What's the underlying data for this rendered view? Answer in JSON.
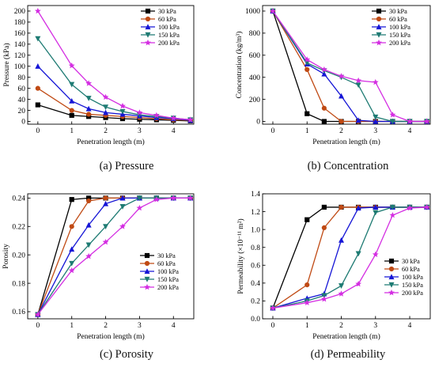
{
  "series_names": [
    "30 kPa",
    "60 kPa",
    "100 kPa",
    "150 kPa",
    "200 kPa"
  ],
  "colors": {
    "30 kPa": "#000000",
    "60 kPa": "#c04a14",
    "100 kPa": "#1616d6",
    "150 kPa": "#1e7b73",
    "200 kPa": "#d42ee2"
  },
  "markers": {
    "30 kPa": "square",
    "60 kPa": "circle",
    "100 kPa": "triangle-up",
    "150 kPa": "triangle-down",
    "200 kPa": "star"
  },
  "captions": {
    "a": "(a) Pressure",
    "b": "(b) Concentration",
    "c": "(c) Porosity",
    "d": "(d) Permeability"
  },
  "chart_data": [
    {
      "id": "a",
      "type": "line",
      "ylabel": "Pressure (kPa)",
      "xlabel": "Penetration length (m)",
      "xlim": [
        -0.3,
        4.6
      ],
      "ylim": [
        -5,
        210
      ],
      "xticks": [
        0,
        1,
        2,
        3,
        4
      ],
      "yticks": [
        0,
        20,
        40,
        60,
        80,
        100,
        120,
        140,
        160,
        180,
        200
      ],
      "legend": "top-right",
      "x": [
        0,
        1,
        1.5,
        2,
        2.5,
        3,
        3.5,
        4,
        4.5
      ],
      "series": [
        {
          "name": "30 kPa",
          "values": [
            30,
            11,
            9,
            7,
            5,
            4,
            3,
            2,
            1
          ]
        },
        {
          "name": "60 kPa",
          "values": [
            60,
            20,
            13,
            11,
            9,
            7,
            5,
            3,
            2
          ]
        },
        {
          "name": "100 kPa",
          "values": [
            100,
            37,
            23,
            16,
            13,
            10,
            7,
            5,
            2
          ]
        },
        {
          "name": "150 kPa",
          "values": [
            150,
            67,
            42,
            26,
            18,
            12,
            9,
            6,
            3
          ]
        },
        {
          "name": "200 kPa",
          "values": [
            200,
            101,
            69,
            44,
            28,
            16,
            11,
            6,
            3
          ]
        }
      ]
    },
    {
      "id": "b",
      "type": "line",
      "ylabel": "Concentration (kg/m³)",
      "xlabel": "Penetration length (m)",
      "xlim": [
        -0.3,
        4.6
      ],
      "ylim": [
        -25,
        1050
      ],
      "xticks": [
        0,
        1,
        2,
        3,
        4
      ],
      "yticks": [
        0,
        200,
        400,
        600,
        800,
        1000
      ],
      "legend": "top-right",
      "x": [
        0,
        1,
        1.5,
        2,
        2.5,
        3,
        3.5,
        4,
        4.5
      ],
      "series": [
        {
          "name": "30 kPa",
          "values": [
            1000,
            70,
            0,
            0,
            0,
            0,
            0,
            0,
            0
          ]
        },
        {
          "name": "60 kPa",
          "values": [
            1000,
            470,
            120,
            0,
            0,
            0,
            0,
            0,
            0
          ]
        },
        {
          "name": "100 kPa",
          "values": [
            1000,
            520,
            430,
            230,
            10,
            0,
            0,
            0,
            0
          ]
        },
        {
          "name": "150 kPa",
          "values": [
            1000,
            530,
            460,
            400,
            330,
            40,
            0,
            0,
            0
          ]
        },
        {
          "name": "200 kPa",
          "values": [
            1000,
            560,
            470,
            410,
            370,
            355,
            60,
            0,
            0
          ]
        }
      ]
    },
    {
      "id": "c",
      "type": "line",
      "ylabel": "Porosity",
      "xlabel": "Penetration length (m)",
      "xlim": [
        -0.3,
        4.6
      ],
      "ylim": [
        0.155,
        0.243
      ],
      "xticks": [
        0,
        1,
        2,
        3,
        4
      ],
      "yticks": [
        0.16,
        0.18,
        0.2,
        0.22,
        0.24
      ],
      "legend": "bottom-right",
      "x": [
        0,
        1,
        1.5,
        2,
        2.5,
        3,
        3.5,
        4,
        4.5
      ],
      "series": [
        {
          "name": "30 kPa",
          "values": [
            0.158,
            0.239,
            0.24,
            0.24,
            0.24,
            0.24,
            0.24,
            0.24,
            0.24
          ]
        },
        {
          "name": "60 kPa",
          "values": [
            0.158,
            0.22,
            0.238,
            0.24,
            0.24,
            0.24,
            0.24,
            0.24,
            0.24
          ]
        },
        {
          "name": "100 kPa",
          "values": [
            0.158,
            0.204,
            0.221,
            0.236,
            0.24,
            0.24,
            0.24,
            0.24,
            0.24
          ]
        },
        {
          "name": "150 kPa",
          "values": [
            0.158,
            0.194,
            0.207,
            0.22,
            0.234,
            0.24,
            0.24,
            0.24,
            0.24
          ]
        },
        {
          "name": "200 kPa",
          "values": [
            0.158,
            0.189,
            0.199,
            0.209,
            0.22,
            0.233,
            0.239,
            0.24,
            0.24
          ]
        }
      ]
    },
    {
      "id": "d",
      "type": "line",
      "ylabel": "Permeability (×10⁻¹¹ m²)",
      "xlabel": "Penetration length (m)",
      "xlim": [
        -0.3,
        4.6
      ],
      "ylim": [
        0.0,
        1.4
      ],
      "xticks": [
        0,
        1,
        2,
        3,
        4
      ],
      "yticks": [
        0.0,
        0.2,
        0.4,
        0.6,
        0.8,
        1.0,
        1.2,
        1.4
      ],
      "legend": "bottom-right",
      "x": [
        0,
        1,
        1.5,
        2,
        2.5,
        3,
        3.5,
        4,
        4.5
      ],
      "series": [
        {
          "name": "30 kPa",
          "values": [
            0.12,
            1.11,
            1.25,
            1.25,
            1.25,
            1.25,
            1.25,
            1.25,
            1.25
          ]
        },
        {
          "name": "60 kPa",
          "values": [
            0.12,
            0.38,
            1.02,
            1.25,
            1.25,
            1.25,
            1.25,
            1.25,
            1.25
          ]
        },
        {
          "name": "100 kPa",
          "values": [
            0.12,
            0.23,
            0.28,
            0.88,
            1.24,
            1.25,
            1.25,
            1.25,
            1.25
          ]
        },
        {
          "name": "150 kPa",
          "values": [
            0.12,
            0.2,
            0.26,
            0.37,
            0.73,
            1.19,
            1.25,
            1.25,
            1.25
          ]
        },
        {
          "name": "200 kPa",
          "values": [
            0.12,
            0.18,
            0.22,
            0.28,
            0.39,
            0.72,
            1.16,
            1.24,
            1.25
          ]
        }
      ]
    }
  ]
}
